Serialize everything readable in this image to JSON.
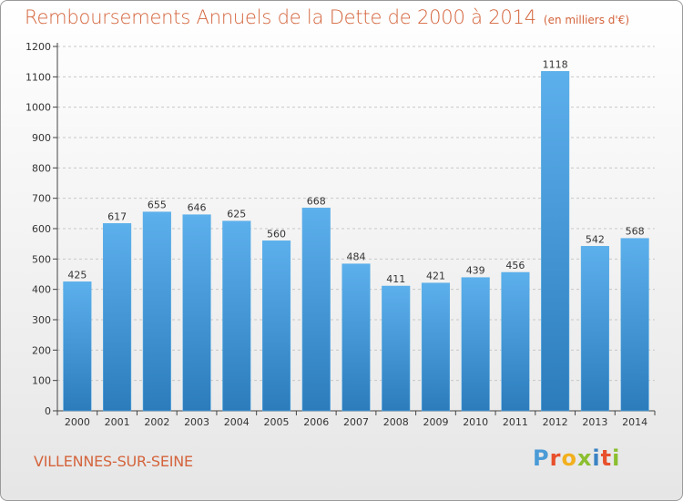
{
  "title": "Remboursements Annuels de la Dette de 2000 à 2014",
  "unit_note": "(en milliers d'€)",
  "town": "VILLENNES-SUR-SEINE",
  "brand": {
    "letters": [
      "P",
      "r",
      "o",
      "x",
      "i",
      "t",
      "i"
    ],
    "colors": [
      "#4a9bd6",
      "#e8502c",
      "#f2b01e",
      "#8bbf2f",
      "#3a82c4",
      "#e8502c",
      "#8bbf2f"
    ]
  },
  "colors": {
    "bar": "#3f97d9",
    "bar_light": "#5cb0ec",
    "bar_dark": "#2c7cbc",
    "text": "#d4643c",
    "grid": "#c8c8c8"
  },
  "chart_data": {
    "type": "bar",
    "categories": [
      "2000",
      "2001",
      "2002",
      "2003",
      "2004",
      "2005",
      "2006",
      "2007",
      "2008",
      "2009",
      "2010",
      "2011",
      "2012",
      "2013",
      "2014"
    ],
    "values": [
      425,
      617,
      655,
      646,
      625,
      560,
      668,
      484,
      411,
      421,
      439,
      456,
      1118,
      542,
      568
    ],
    "yticks": [
      0,
      100,
      200,
      300,
      400,
      500,
      600,
      700,
      800,
      900,
      1000,
      1100,
      1200
    ],
    "ylim": [
      0,
      1200
    ],
    "grid": true,
    "data_labels": true
  }
}
